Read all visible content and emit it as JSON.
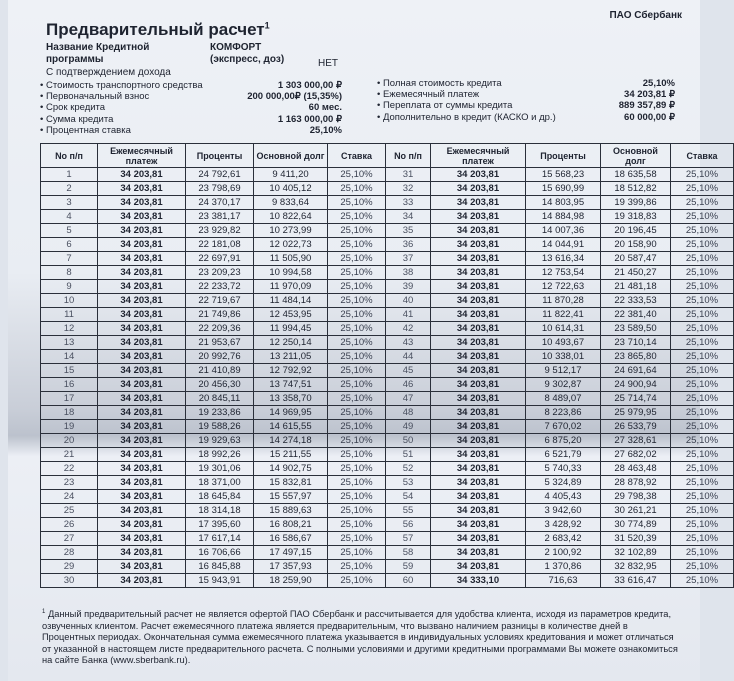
{
  "header": {
    "bank": "ПАО Сбербанк",
    "title": "Предварительный расчет",
    "title_footnote_mark": "1",
    "program_label": "Название Кредитной программы",
    "program_value": "КОМФОРТ (экспресс, доз)",
    "income_label": "С подтверждением дохода",
    "income_value": "НЕТ"
  },
  "params_left": [
    {
      "label": "• Стоимость транспортного средства",
      "value": "1 303 000,00 ₽"
    },
    {
      "label": "• Первоначальный взнос",
      "value": "200 000,00₽ (15,35%)"
    },
    {
      "label": "• Срок кредита",
      "value": "60 мес."
    },
    {
      "label": "• Сумма кредита",
      "value": "1 163 000,00 ₽"
    },
    {
      "label": "• Процентная ставка",
      "value": "25,10%"
    }
  ],
  "params_right": [
    {
      "label": "• Полная стоимость кредита",
      "value": "25,10%"
    },
    {
      "label": "• Ежемесячный платеж",
      "value": "34 203,81 ₽"
    },
    {
      "label": "• Переплата от суммы кредита",
      "value": "889 357,89 ₽"
    },
    {
      "label": "• Дополнительно в кредит (КАСКО и др.)",
      "value": "60 000,00 ₽"
    }
  ],
  "table": {
    "columns": [
      "No п/п",
      "Ежемесячный платеж",
      "Проценты",
      "Основной долг",
      "Ставка"
    ],
    "rows": [
      [
        "1",
        "34 203,81",
        "24 792,61",
        "9 411,20",
        "25,10%"
      ],
      [
        "2",
        "34 203,81",
        "23 798,69",
        "10 405,12",
        "25,10%"
      ],
      [
        "3",
        "34 203,81",
        "24 370,17",
        "9 833,64",
        "25,10%"
      ],
      [
        "4",
        "34 203,81",
        "23 381,17",
        "10 822,64",
        "25,10%"
      ],
      [
        "5",
        "34 203,81",
        "23 929,82",
        "10 273,99",
        "25,10%"
      ],
      [
        "6",
        "34 203,81",
        "22 181,08",
        "12 022,73",
        "25,10%"
      ],
      [
        "7",
        "34 203,81",
        "22 697,91",
        "11 505,90",
        "25,10%"
      ],
      [
        "8",
        "34 203,81",
        "23 209,23",
        "10 994,58",
        "25,10%"
      ],
      [
        "9",
        "34 203,81",
        "22 233,72",
        "11 970,09",
        "25,10%"
      ],
      [
        "10",
        "34 203,81",
        "22 719,67",
        "11 484,14",
        "25,10%"
      ],
      [
        "11",
        "34 203,81",
        "21 749,86",
        "12 453,95",
        "25,10%"
      ],
      [
        "12",
        "34 203,81",
        "22 209,36",
        "11 994,45",
        "25,10%"
      ],
      [
        "13",
        "34 203,81",
        "21 953,67",
        "12 250,14",
        "25,10%"
      ],
      [
        "14",
        "34 203,81",
        "20 992,76",
        "13 211,05",
        "25,10%"
      ],
      [
        "15",
        "34 203,81",
        "21 410,89",
        "12 792,92",
        "25,10%"
      ],
      [
        "16",
        "34 203,81",
        "20 456,30",
        "13 747,51",
        "25,10%"
      ],
      [
        "17",
        "34 203,81",
        "20 845,11",
        "13 358,70",
        "25,10%"
      ],
      [
        "18",
        "34 203,81",
        "19 233,86",
        "14 969,95",
        "25,10%"
      ],
      [
        "19",
        "34 203,81",
        "19 588,26",
        "14 615,55",
        "25,10%"
      ],
      [
        "20",
        "34 203,81",
        "19 929,63",
        "14 274,18",
        "25,10%"
      ],
      [
        "21",
        "34 203,81",
        "18 992,26",
        "15 211,55",
        "25,10%"
      ],
      [
        "22",
        "34 203,81",
        "19 301,06",
        "14 902,75",
        "25,10%"
      ],
      [
        "23",
        "34 203,81",
        "18 371,00",
        "15 832,81",
        "25,10%"
      ],
      [
        "24",
        "34 203,81",
        "18 645,84",
        "15 557,97",
        "25,10%"
      ],
      [
        "25",
        "34 203,81",
        "18 314,18",
        "15 889,63",
        "25,10%"
      ],
      [
        "26",
        "34 203,81",
        "17 395,60",
        "16 808,21",
        "25,10%"
      ],
      [
        "27",
        "34 203,81",
        "17 617,14",
        "16 586,67",
        "25,10%"
      ],
      [
        "28",
        "34 203,81",
        "16 706,66",
        "17 497,15",
        "25,10%"
      ],
      [
        "29",
        "34 203,81",
        "16 845,88",
        "17 357,93",
        "25,10%"
      ],
      [
        "30",
        "34 203,81",
        "15 943,91",
        "18 259,90",
        "25,10%"
      ],
      [
        "31",
        "34 203,81",
        "15 568,23",
        "18 635,58",
        "25,10%"
      ],
      [
        "32",
        "34 203,81",
        "15 690,99",
        "18 512,82",
        "25,10%"
      ],
      [
        "33",
        "34 203,81",
        "14 803,95",
        "19 399,86",
        "25,10%"
      ],
      [
        "34",
        "34 203,81",
        "14 884,98",
        "19 318,83",
        "25,10%"
      ],
      [
        "35",
        "34 203,81",
        "14 007,36",
        "20 196,45",
        "25,10%"
      ],
      [
        "36",
        "34 203,81",
        "14 044,91",
        "20 158,90",
        "25,10%"
      ],
      [
        "37",
        "34 203,81",
        "13 616,34",
        "20 587,47",
        "25,10%"
      ],
      [
        "38",
        "34 203,81",
        "12 753,54",
        "21 450,27",
        "25,10%"
      ],
      [
        "39",
        "34 203,81",
        "12 722,63",
        "21 481,18",
        "25,10%"
      ],
      [
        "40",
        "34 203,81",
        "11 870,28",
        "22 333,53",
        "25,10%"
      ],
      [
        "41",
        "34 203,81",
        "11 822,41",
        "22 381,40",
        "25,10%"
      ],
      [
        "42",
        "34 203,81",
        "10 614,31",
        "23 589,50",
        "25,10%"
      ],
      [
        "43",
        "34 203,81",
        "10 493,67",
        "23 710,14",
        "25,10%"
      ],
      [
        "44",
        "34 203,81",
        "10 338,01",
        "23 865,80",
        "25,10%"
      ],
      [
        "45",
        "34 203,81",
        "9 512,17",
        "24 691,64",
        "25,10%"
      ],
      [
        "46",
        "34 203,81",
        "9 302,87",
        "24 900,94",
        "25,10%"
      ],
      [
        "47",
        "34 203,81",
        "8 489,07",
        "25 714,74",
        "25,10%"
      ],
      [
        "48",
        "34 203,81",
        "8 223,86",
        "25 979,95",
        "25,10%"
      ],
      [
        "49",
        "34 203,81",
        "7 670,02",
        "26 533,79",
        "25,10%"
      ],
      [
        "50",
        "34 203,81",
        "6 875,20",
        "27 328,61",
        "25,10%"
      ],
      [
        "51",
        "34 203,81",
        "6 521,79",
        "27 682,02",
        "25,10%"
      ],
      [
        "52",
        "34 203,81",
        "5 740,33",
        "28 463,48",
        "25,10%"
      ],
      [
        "53",
        "34 203,81",
        "5 324,89",
        "28 878,92",
        "25,10%"
      ],
      [
        "54",
        "34 203,81",
        "4 405,43",
        "29 798,38",
        "25,10%"
      ],
      [
        "55",
        "34 203,81",
        "3 942,60",
        "30 261,21",
        "25,10%"
      ],
      [
        "56",
        "34 203,81",
        "3 428,92",
        "30 774,89",
        "25,10%"
      ],
      [
        "57",
        "34 203,81",
        "2 683,42",
        "31 520,39",
        "25,10%"
      ],
      [
        "58",
        "34 203,81",
        "2 100,92",
        "32 102,89",
        "25,10%"
      ],
      [
        "59",
        "34 203,81",
        "1 370,86",
        "32 832,95",
        "25,10%"
      ],
      [
        "60",
        "34 333,10",
        "716,63",
        "33 616,47",
        "25,10%"
      ]
    ]
  },
  "footnote": {
    "mark": "1",
    "text": "Данный предварительный расчет не является офертой ПАО Сбербанк и рассчитывается для удобства клиента, исходя из параметров кредита, озвученных клиентом. Расчет ежемесячного платежа является предварительным, что вызвано наличием разницы в количестве дней в Процентных периодах. Окончательная сумма ежемесячного платежа указывается в индивидуальных условиях кредитования и может отличаться от указанной в настоящем листе предварительного расчета. С полными условиями и другими кредитными программами Вы можете ознакомиться на сайте Банка (www.sberbank.ru)."
  }
}
